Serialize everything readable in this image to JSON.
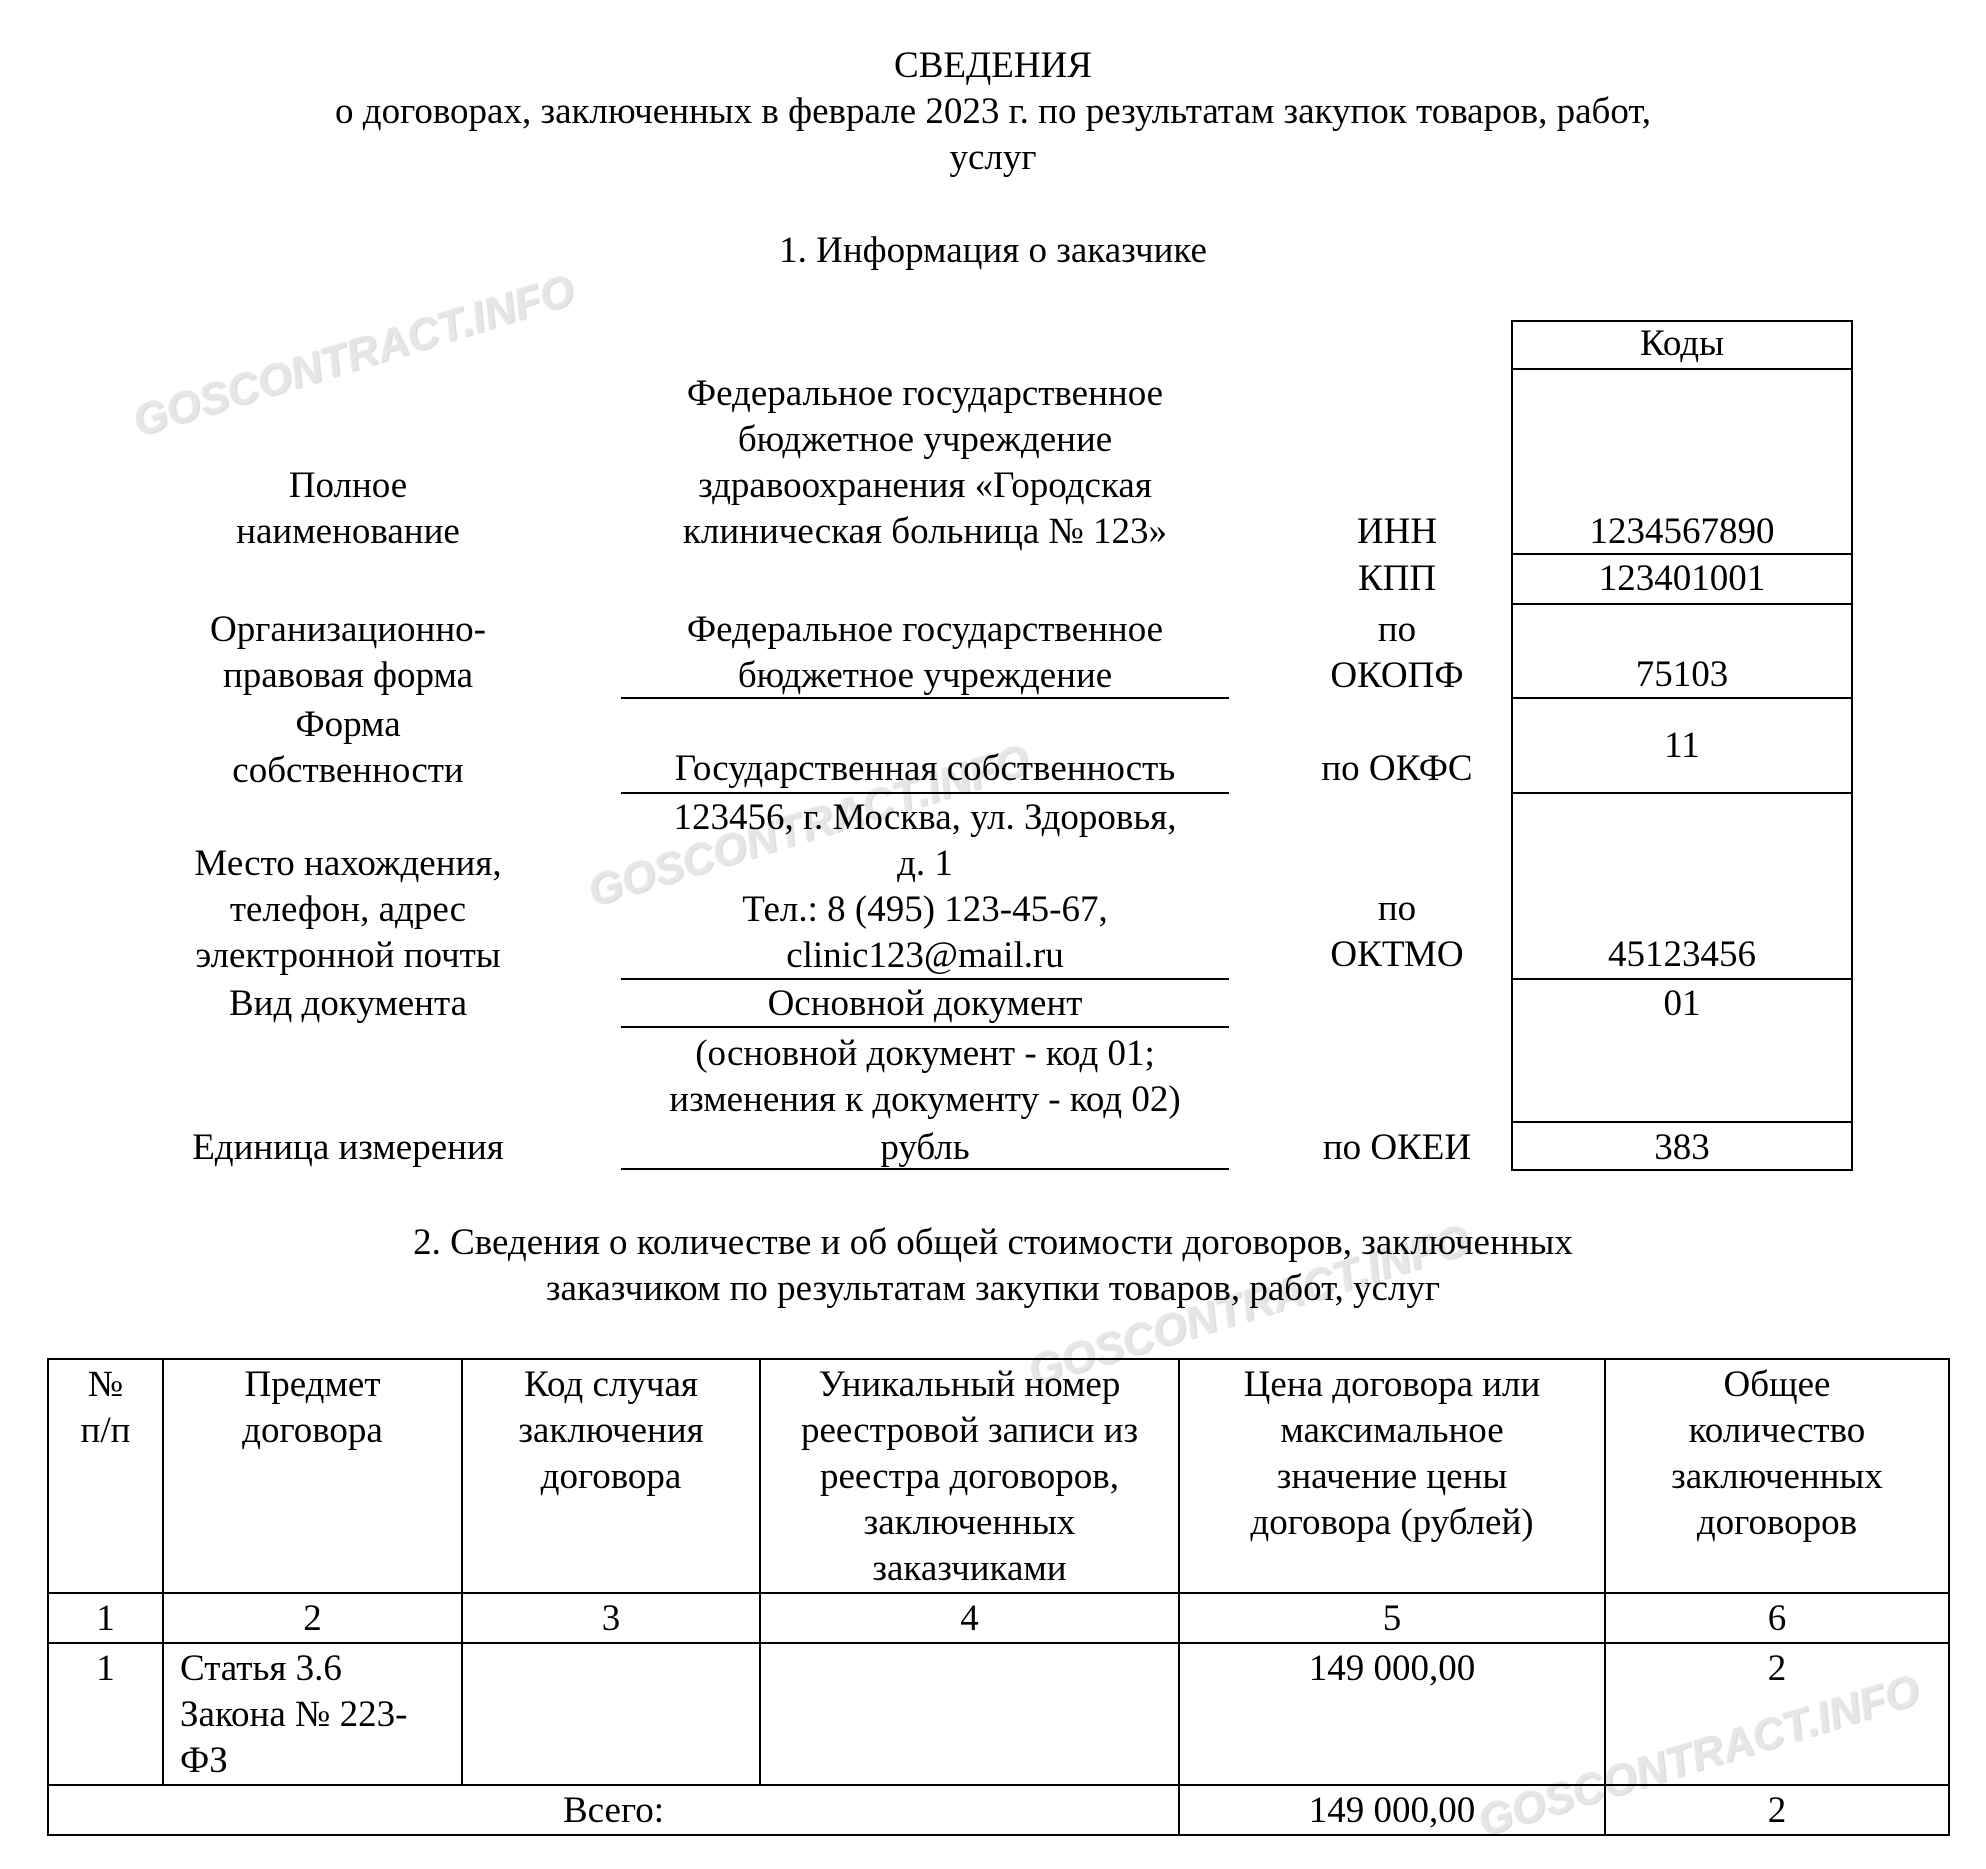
{
  "header": {
    "title": "СВЕДЕНИЯ",
    "subtitle_lines": [
      "о договорах, заключенных в феврале 2023 г. по результатам закупок товаров, работ,",
      "услуг"
    ]
  },
  "section1": {
    "title": "1. Информация о заказчике",
    "codes_header": "Коды",
    "rows": [
      {
        "label": [
          "Полное",
          "наименование"
        ],
        "value": [
          "Федеральное государственное",
          "бюджетное учреждение",
          "здравоохранения «Городская",
          "клиническая больница № 123»"
        ],
        "code_label": [
          "ИНН"
        ],
        "code": "1234567890"
      },
      {
        "code_label": [
          "КПП"
        ],
        "code": "123401001"
      },
      {
        "label": [
          "Организационно-",
          "правовая форма"
        ],
        "value": [
          "Федеральное государственное",
          "бюджетное учреждение"
        ],
        "code_label": [
          "по",
          "ОКОПФ"
        ],
        "code": "75103"
      },
      {
        "label": [
          "Форма",
          "собственности"
        ],
        "value": [
          "Государственная собственность"
        ],
        "code_label": [
          "по ОКФС"
        ],
        "code": "11"
      },
      {
        "label": [
          "Место нахождения,",
          "телефон, адрес",
          "электронной почты"
        ],
        "value": [
          "123456, г. Москва, ул. Здоровья,",
          "д. 1",
          "Тел.: 8 (495) 123-45-67,",
          "clinic123@mail.ru"
        ],
        "code_label": [
          "по",
          "ОКТМО"
        ],
        "code": "45123456"
      },
      {
        "label": [
          "Вид документа"
        ],
        "value": [
          "Основной документ"
        ],
        "code": "01",
        "note": [
          "(основной документ - код 01;",
          "изменения к документу - код 02)"
        ]
      },
      {
        "label": [
          "Единица измерения"
        ],
        "value": [
          "рубль"
        ],
        "code_label": [
          "по ОКЕИ"
        ],
        "code": "383"
      }
    ]
  },
  "section2": {
    "title_lines": [
      "2. Сведения о количестве и об общей стоимости договоров, заключенных",
      "заказчиком по результатам закупки товаров, работ, услуг"
    ],
    "columns": [
      [
        "№",
        "п/п"
      ],
      [
        "Предмет",
        "договора"
      ],
      [
        "Код случая",
        "заключения",
        "договора"
      ],
      [
        "Уникальный номер",
        "реестровой записи из",
        "реестра договоров,",
        "заключенных",
        "заказчиками"
      ],
      [
        "Цена договора или",
        "максимальное",
        "значение цены",
        "договора (рублей)"
      ],
      [
        "Общее",
        "количество",
        "заключенных",
        "договоров"
      ]
    ],
    "column_numbers": [
      "1",
      "2",
      "3",
      "4",
      "5",
      "6"
    ],
    "rows": [
      {
        "num": "1",
        "subject": [
          "Статья 3.6",
          "Закона № 223-",
          "ФЗ"
        ],
        "case_code": "",
        "registry_number": "",
        "price": "149 000,00",
        "count": "2"
      }
    ],
    "total": {
      "label": "Всего:",
      "price": "149 000,00",
      "count": "2"
    }
  },
  "watermark": "GOSCONTRACT.INFO"
}
